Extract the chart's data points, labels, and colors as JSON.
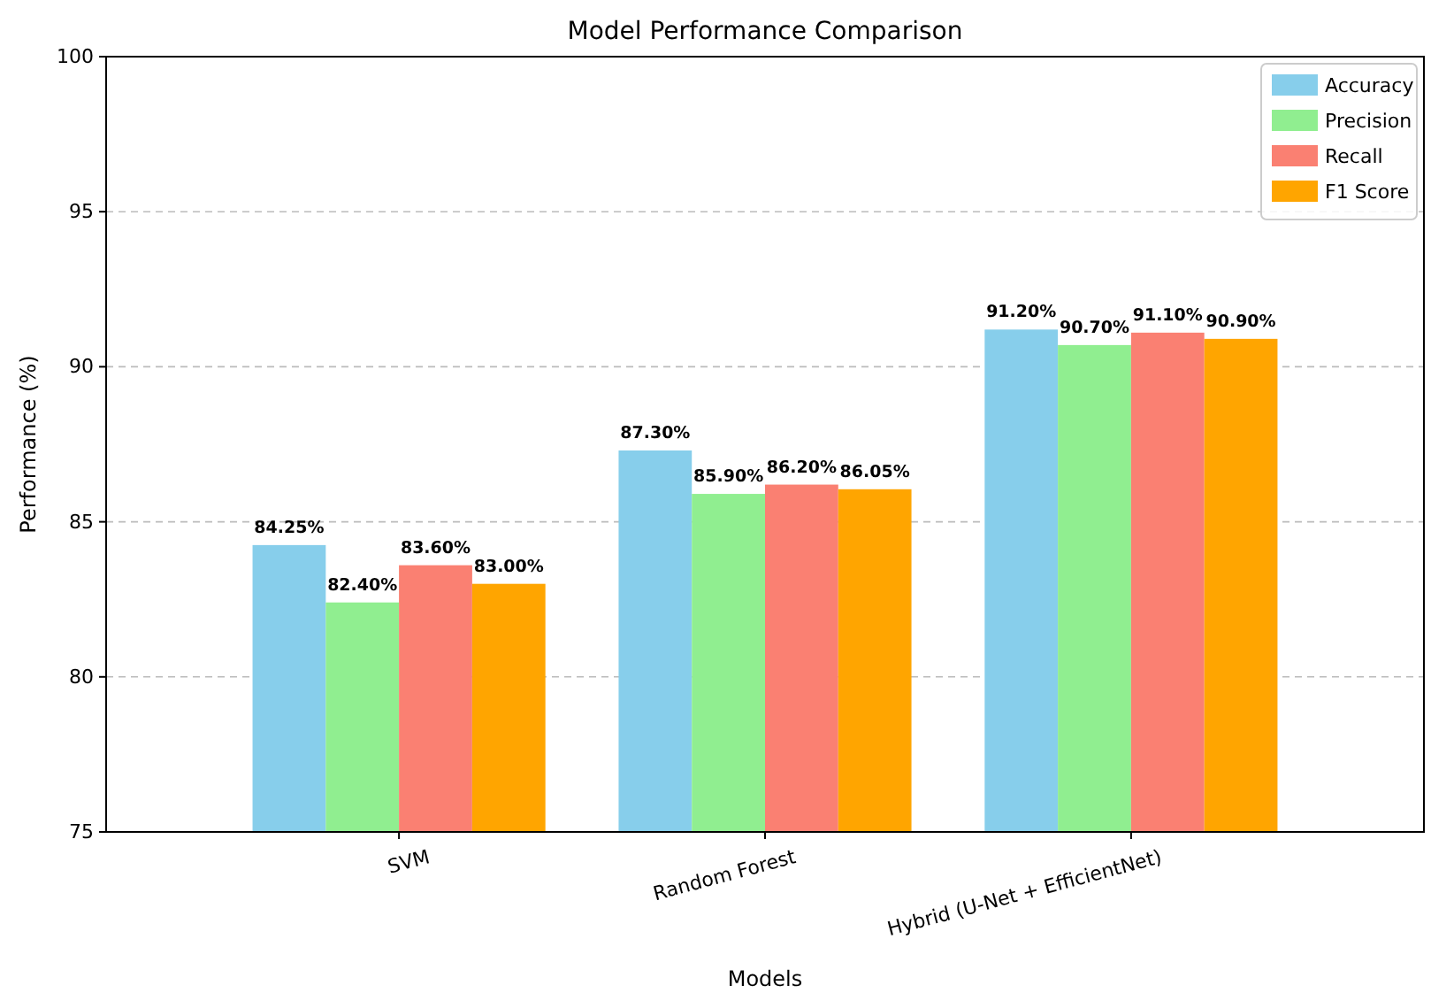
{
  "chart_data": {
    "type": "bar",
    "title": "Model Performance Comparison",
    "xlabel": "Models",
    "ylabel": "Performance (%)",
    "categories": [
      "SVM",
      "Random Forest",
      "Hybrid (U-Net + EfficientNet)"
    ],
    "series": [
      {
        "name": "Accuracy",
        "color": "#87ceeb",
        "values": [
          84.25,
          87.3,
          91.2
        ],
        "value_labels": [
          "84.25%",
          "87.30%",
          "91.20%"
        ]
      },
      {
        "name": "Precision",
        "color": "#90ee90",
        "values": [
          82.4,
          85.9,
          90.7
        ],
        "value_labels": [
          "82.40%",
          "85.90%",
          "90.70%"
        ]
      },
      {
        "name": "Recall",
        "color": "#fa8072",
        "values": [
          83.6,
          86.2,
          91.1
        ],
        "value_labels": [
          "83.60%",
          "86.20%",
          "91.10%"
        ]
      },
      {
        "name": "F1 Score",
        "color": "#ffa500",
        "values": [
          83.0,
          86.05,
          90.9
        ],
        "value_labels": [
          "83.00%",
          "86.05%",
          "90.90%"
        ]
      }
    ],
    "ylim": [
      75,
      100
    ],
    "yticks": [
      75,
      80,
      85,
      90,
      95,
      100
    ],
    "grid": "y",
    "legend": "top right"
  }
}
